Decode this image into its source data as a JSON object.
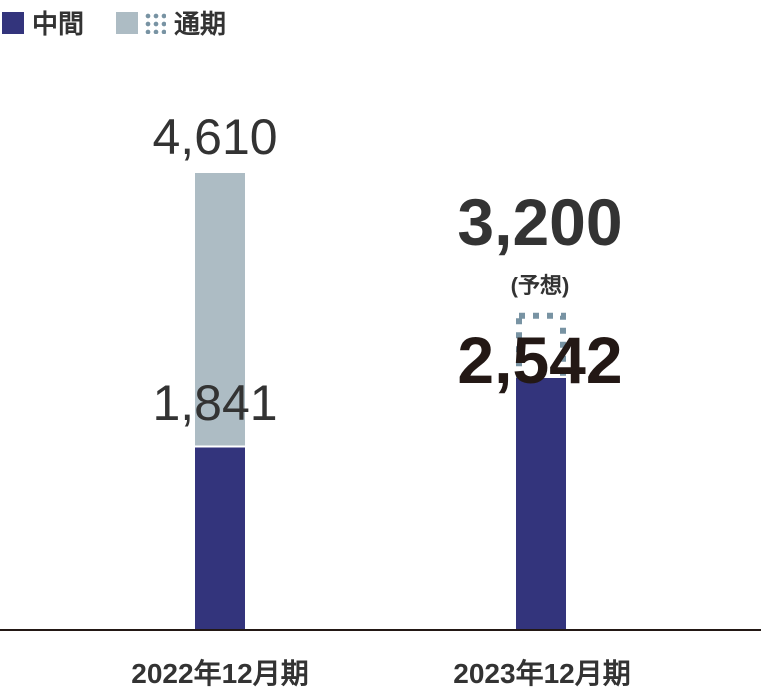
{
  "legend": {
    "interim": "中間",
    "full_year": "通期"
  },
  "colors": {
    "interim": "#33347c",
    "full_year": "#adbcc4",
    "forecast_dots": "#7893a3",
    "axis": "#231815"
  },
  "chart_data": {
    "type": "bar",
    "categories": [
      "2022年12月期",
      "2023年12月期"
    ],
    "series": [
      {
        "name": "中間",
        "values": [
          1841,
          2542
        ]
      },
      {
        "name": "通期",
        "values": [
          4610,
          3200
        ]
      }
    ],
    "labels": {
      "interim": [
        "1,841",
        "2,542"
      ],
      "full_year": [
        "4,610",
        "3,200"
      ],
      "forecast_note": "(予想)"
    },
    "forecast": [
      false,
      true
    ],
    "ylim": [
      0,
      4610
    ],
    "grid": false,
    "legend_position": "top-left"
  }
}
